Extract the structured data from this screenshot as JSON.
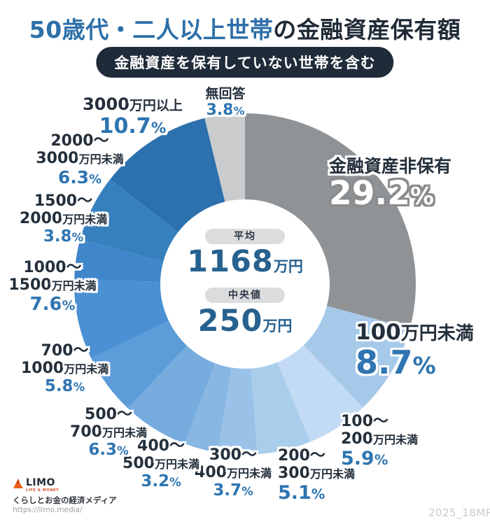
{
  "title": {
    "highlight": "50歳代・二人以上世帯",
    "rest": "の金融資産保有額"
  },
  "badge": {
    "text": "金融資産を保有していない世帯を含む"
  },
  "center_panel": {
    "average_label": "平均",
    "average_value": "1168",
    "median_label": "中央値",
    "median_value": "250",
    "unit": "万円"
  },
  "footer": {
    "brand": "LIMO",
    "brand_sub": "LIFE & MONEY",
    "tagline": "くらしとお金の経済メディア",
    "url": "https://limo.media/",
    "code": "2025_18MR"
  },
  "chart_data": {
    "type": "pie",
    "subtype": "donut",
    "start": "top",
    "direction": "clockwise",
    "unit": "%",
    "title": "50歳代・二人以上世帯の金融資産保有額（金融資産を保有していない世帯を含む）",
    "center_stats": {
      "average": "平均 1168万円",
      "median": "中央値 250万円"
    },
    "segments": [
      {
        "label": "金融資産非保有",
        "value": 29.2,
        "color": "#909396"
      },
      {
        "label": "100万円未満",
        "value": 8.7,
        "color": "#A6C9EA",
        "num": "100",
        "suffix": "万円未満"
      },
      {
        "label": "100〜200万円未満",
        "value": 5.9,
        "color": "#C2DAF3",
        "line1": "100〜",
        "num": "200",
        "suffix": "万円未満"
      },
      {
        "label": "200〜300万円未満",
        "value": 5.1,
        "color": "#ABCDEC",
        "line1": "200〜",
        "num": "300",
        "suffix": "万円未満"
      },
      {
        "label": "300〜400万円未満",
        "value": 3.7,
        "color": "#9AC2E8",
        "line1": "300〜",
        "num": "400",
        "suffix": "万円未満"
      },
      {
        "label": "400〜500万円未満",
        "value": 3.2,
        "color": "#88B7E3",
        "line1": "400〜",
        "num": "500",
        "suffix": "万円未満"
      },
      {
        "label": "500〜700万円未満",
        "value": 6.3,
        "color": "#76ACDE",
        "line1": "500〜",
        "num": "700",
        "suffix": "万円未満"
      },
      {
        "label": "700〜1000万円未満",
        "value": 5.8,
        "color": "#5C9CD8",
        "line1": "700〜",
        "num": "1000",
        "suffix": "万円未満"
      },
      {
        "label": "1000〜1500万円未満",
        "value": 7.6,
        "color": "#4A90D2",
        "line1": "1000〜",
        "num": "1500",
        "suffix": "万円未満"
      },
      {
        "label": "1500〜2000万円未満",
        "value": 3.8,
        "color": "#3F87CA",
        "line1": "1500〜",
        "num": "2000",
        "suffix": "万円未満"
      },
      {
        "label": "2000〜3000万円未満",
        "value": 6.3,
        "color": "#3780BE",
        "line1": "2000〜",
        "num": "3000",
        "suffix": "万円未満"
      },
      {
        "label": "3000万円以上",
        "value": 10.7,
        "color": "#2C70AD",
        "num": "3000",
        "suffix": "万円以上"
      },
      {
        "label": "無回答",
        "value": 3.8,
        "color": "#C9CBCD"
      }
    ]
  }
}
